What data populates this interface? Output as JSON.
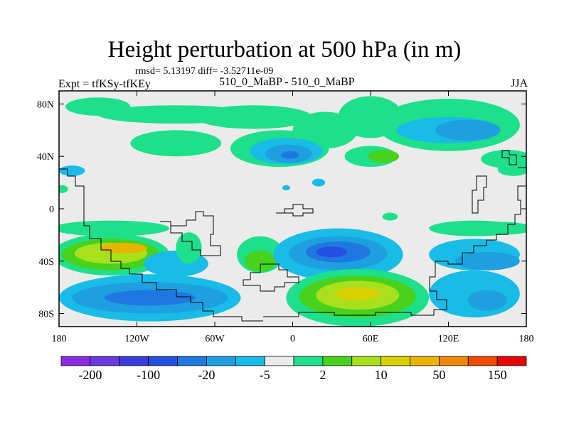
{
  "chart_data": {
    "type": "heatmap",
    "title": "Height perturbation at 500 hPa (in m)",
    "stats_line": "rmsd= 5.13197 diff= -3.52711e-09",
    "left_label": "Expt = tfKSy-tfKEy",
    "center_label": "510_0_MaBP - 510_0_MaBP",
    "season": "JJA",
    "xlim": [
      -180,
      180
    ],
    "ylim": [
      -90,
      90
    ],
    "x_ticks": [
      {
        "value": -180,
        "label": "180"
      },
      {
        "value": -120,
        "label": "120W"
      },
      {
        "value": -60,
        "label": "60W"
      },
      {
        "value": 0,
        "label": "0"
      },
      {
        "value": 60,
        "label": "60E"
      },
      {
        "value": 120,
        "label": "120E"
      },
      {
        "value": 180,
        "label": "180"
      }
    ],
    "y_ticks": [
      {
        "value": 80,
        "label": "80N"
      },
      {
        "value": 40,
        "label": "40N"
      },
      {
        "value": 0,
        "label": "0"
      },
      {
        "value": -40,
        "label": "40S"
      },
      {
        "value": -80,
        "label": "80S"
      }
    ],
    "colorbar": {
      "colors": [
        "#8a2be2",
        "#6a3ae0",
        "#3b3bdd",
        "#2350e0",
        "#1e78e0",
        "#1ea0e0",
        "#18bce6",
        "#ebebeb",
        "#1ee08a",
        "#48d21e",
        "#a8e01e",
        "#d8d000",
        "#e8b400",
        "#f08800",
        "#f04a00",
        "#e80000"
      ],
      "labels": [
        {
          "boundary": 1,
          "text": "-200"
        },
        {
          "boundary": 3,
          "text": "-100"
        },
        {
          "boundary": 5,
          "text": "-20"
        },
        {
          "boundary": 7,
          "text": "-5"
        },
        {
          "boundary": 9,
          "text": "2"
        },
        {
          "boundary": 11,
          "text": "10"
        },
        {
          "boundary": 13,
          "text": "50"
        },
        {
          "boundary": 15,
          "text": "150"
        }
      ]
    },
    "field_blobs": [
      {
        "lon": -90,
        "lat": 72,
        "rlon": 60,
        "rlat": 7,
        "color": "#1ee08a"
      },
      {
        "lon": -150,
        "lat": 78,
        "rlon": 25,
        "rlat": 7,
        "color": "#1ee08a"
      },
      {
        "lon": -30,
        "lat": 70,
        "rlon": 45,
        "rlat": 9,
        "color": "#1ee08a"
      },
      {
        "lon": -90,
        "lat": 50,
        "rlon": 35,
        "rlat": 10,
        "color": "#1ee08a"
      },
      {
        "lon": 25,
        "lat": 60,
        "rlon": 25,
        "rlat": 14,
        "color": "#1ee08a"
      },
      {
        "lon": 60,
        "lat": 70,
        "rlon": 25,
        "rlat": 16,
        "color": "#1ee08a"
      },
      {
        "lon": 120,
        "lat": 64,
        "rlon": 55,
        "rlat": 20,
        "color": "#1ee08a"
      },
      {
        "lon": 120,
        "lat": 60,
        "rlon": 40,
        "rlat": 10,
        "color": "#18bce6"
      },
      {
        "lon": 135,
        "lat": 60,
        "rlon": 25,
        "rlat": 8,
        "color": "#1ea0e0"
      },
      {
        "lon": 60,
        "lat": 40,
        "rlon": 20,
        "rlat": 8,
        "color": "#1ee08a"
      },
      {
        "lon": 70,
        "lat": 40,
        "rlon": 12,
        "rlat": 5,
        "color": "#48d21e"
      },
      {
        "lon": -10,
        "lat": 46,
        "rlon": 38,
        "rlat": 14,
        "color": "#1ee08a"
      },
      {
        "lon": -5,
        "lat": 44,
        "rlon": 28,
        "rlat": 10,
        "color": "#18bce6"
      },
      {
        "lon": -3,
        "lat": 42,
        "rlon": 18,
        "rlat": 7,
        "color": "#1ea0e0"
      },
      {
        "lon": -2,
        "lat": 41,
        "rlon": 7,
        "rlat": 3,
        "color": "#1e78e0"
      },
      {
        "lon": 165,
        "lat": 38,
        "rlon": 20,
        "rlat": 7,
        "color": "#1ee08a"
      },
      {
        "lon": 170,
        "lat": 30,
        "rlon": 12,
        "rlat": 5,
        "color": "#1ee08a"
      },
      {
        "lon": -170,
        "lat": 29,
        "rlon": 10,
        "rlat": 4,
        "color": "#18bce6"
      },
      {
        "lon": -178,
        "lat": 15,
        "rlon": 5,
        "rlat": 3,
        "color": "#1ee08a"
      },
      {
        "lon": 20,
        "lat": 20,
        "rlon": 5,
        "rlat": 3,
        "color": "#18bce6"
      },
      {
        "lon": -5,
        "lat": 16,
        "rlon": 3,
        "rlat": 2,
        "color": "#18bce6"
      },
      {
        "lon": 75,
        "lat": -6,
        "rlon": 6,
        "rlat": 3,
        "color": "#1ee08a"
      },
      {
        "lon": -140,
        "lat": -15,
        "rlon": 45,
        "rlat": 6,
        "color": "#1ee08a"
      },
      {
        "lon": 140,
        "lat": -15,
        "rlon": 35,
        "rlat": 6,
        "color": "#1ee08a"
      },
      {
        "lon": 160,
        "lat": -15,
        "rlon": 25,
        "rlat": 5,
        "color": "#1ee08a"
      },
      {
        "lon": -140,
        "lat": -35,
        "rlon": 45,
        "rlat": 16,
        "color": "#1ee08a"
      },
      {
        "lon": -140,
        "lat": -35,
        "rlon": 38,
        "rlat": 12,
        "color": "#48d21e"
      },
      {
        "lon": -140,
        "lat": -34,
        "rlon": 28,
        "rlat": 8,
        "color": "#a8e01e"
      },
      {
        "lon": -130,
        "lat": -30,
        "rlon": 18,
        "rlat": 4,
        "color": "#e8b400"
      },
      {
        "lon": -90,
        "lat": -42,
        "rlon": 25,
        "rlat": 10,
        "color": "#18bce6"
      },
      {
        "lon": -80,
        "lat": -30,
        "rlon": 10,
        "rlat": 12,
        "color": "#1ee08a"
      },
      {
        "lon": -25,
        "lat": -35,
        "rlon": 18,
        "rlat": 14,
        "color": "#1ee08a"
      },
      {
        "lon": -25,
        "lat": -40,
        "rlon": 12,
        "rlat": 8,
        "color": "#48d21e"
      },
      {
        "lon": 35,
        "lat": -35,
        "rlon": 50,
        "rlat": 20,
        "color": "#18bce6"
      },
      {
        "lon": 35,
        "lat": -34,
        "rlon": 38,
        "rlat": 13,
        "color": "#1ea0e0"
      },
      {
        "lon": 35,
        "lat": -33,
        "rlon": 25,
        "rlat": 8,
        "color": "#1e78e0"
      },
      {
        "lon": 30,
        "lat": -33,
        "rlon": 12,
        "rlat": 4,
        "color": "#2350e0"
      },
      {
        "lon": 140,
        "lat": -35,
        "rlon": 35,
        "rlat": 12,
        "color": "#18bce6"
      },
      {
        "lon": 150,
        "lat": -40,
        "rlon": 25,
        "rlat": 7,
        "color": "#1ea0e0"
      },
      {
        "lon": -110,
        "lat": -68,
        "rlon": 70,
        "rlat": 18,
        "color": "#18bce6"
      },
      {
        "lon": -110,
        "lat": -68,
        "rlon": 60,
        "rlat": 12,
        "color": "#1ea0e0"
      },
      {
        "lon": -110,
        "lat": -68,
        "rlon": 35,
        "rlat": 6,
        "color": "#1e78e0"
      },
      {
        "lon": 50,
        "lat": -68,
        "rlon": 55,
        "rlat": 22,
        "color": "#1ee08a"
      },
      {
        "lon": 50,
        "lat": -67,
        "rlon": 45,
        "rlat": 16,
        "color": "#48d21e"
      },
      {
        "lon": 50,
        "lat": -66,
        "rlon": 32,
        "rlat": 11,
        "color": "#a8e01e"
      },
      {
        "lon": 50,
        "lat": -65,
        "rlon": 18,
        "rlat": 5,
        "color": "#d8d000"
      },
      {
        "lon": 140,
        "lat": -65,
        "rlon": 35,
        "rlat": 18,
        "color": "#18bce6"
      },
      {
        "lon": 150,
        "lat": -70,
        "rlon": 15,
        "rlat": 8,
        "color": "#1ea0e0"
      }
    ]
  }
}
